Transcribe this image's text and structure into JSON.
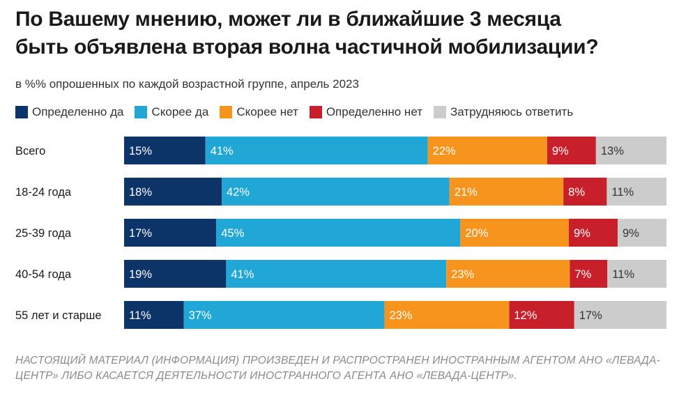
{
  "chart_data": {
    "type": "bar",
    "orientation": "horizontal",
    "stacked": true,
    "title_lines": [
      "По Вашему мнению, может ли в ближайшие 3 месяца",
      "быть объявлена вторая волна частичной мобилизации?"
    ],
    "subtitle": "в %% опрошенных по каждой возрастной группе, апрель 2023",
    "categories": [
      "Всего",
      "18-24 года",
      "25-39 года",
      "40-54 года",
      "55 лет и старше"
    ],
    "series": [
      {
        "name": "Определенно да",
        "color": "#0d3468",
        "values": [
          15,
          18,
          17,
          19,
          11
        ]
      },
      {
        "name": "Скорее да",
        "color": "#21a7d6",
        "values": [
          41,
          42,
          45,
          41,
          37
        ]
      },
      {
        "name": "Скорее нет",
        "color": "#f7941d",
        "values": [
          22,
          21,
          20,
          23,
          23
        ]
      },
      {
        "name": "Определенно нет",
        "color": "#c8202a",
        "values": [
          9,
          8,
          9,
          7,
          12
        ]
      },
      {
        "name": "Затрудняюсь ответить",
        "color": "#cccccc",
        "values": [
          13,
          11,
          9,
          11,
          17
        ]
      }
    ],
    "value_suffix": "%",
    "legend_position": "top-left",
    "grid": false
  },
  "footer": "НАСТОЯЩИЙ МАТЕРИАЛ (ИНФОРМАЦИЯ) ПРОИЗВЕДЕН И РАСПРОСТРАНЕН ИНОСТРАННЫМ АГЕНТОМ АНО «ЛЕВАДА-ЦЕНТР» ЛИБО КАСАЕТСЯ ДЕЯТЕЛЬНОСТИ ИНОСТРАННОГО АГЕНТА АНО «ЛЕВАДА-ЦЕНТР»."
}
